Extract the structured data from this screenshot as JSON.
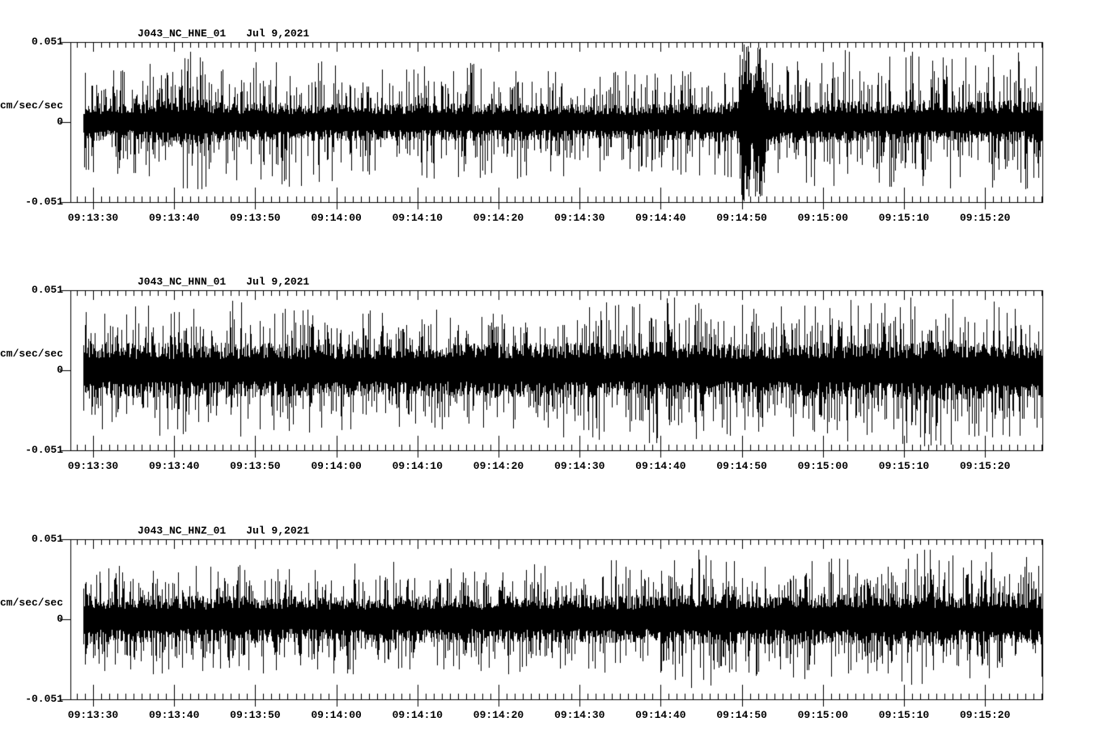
{
  "window": {
    "background_color": "#ffffff",
    "trace_color": "#000000"
  },
  "chart_data": [
    {
      "type": "line",
      "kind": "seismogram-waveform",
      "station": "J043_NC_HNE_01",
      "date": "Jul 9,2021",
      "ylabel": "cm/sec/sec",
      "ytick_labels": [
        "0.051",
        "0",
        "-0.051"
      ],
      "ylim": [
        -0.051,
        0.051
      ],
      "xtick_labels": [
        "09:13:30",
        "09:13:40",
        "09:13:50",
        "09:14:00",
        "09:14:10",
        "09:14:20",
        "09:14:30",
        "09:14:40",
        "09:14:50",
        "09:15:00",
        "09:15:10",
        "09:15:20"
      ],
      "xtick_interval_s": 10,
      "minor_tick_s": 1,
      "trace_start_offset_s": -1.2,
      "trace_end_offset_s": 117.0,
      "seed": 7,
      "envelope": [
        [
          -1.2,
          0.011,
          0.032
        ],
        [
          5,
          0.011,
          0.034
        ],
        [
          8,
          0.014,
          0.042
        ],
        [
          12,
          0.015,
          0.048
        ],
        [
          16,
          0.012,
          0.036
        ],
        [
          25,
          0.011,
          0.042
        ],
        [
          35,
          0.011,
          0.034
        ],
        [
          45,
          0.011,
          0.038
        ],
        [
          55,
          0.011,
          0.036
        ],
        [
          65,
          0.01,
          0.034
        ],
        [
          75,
          0.011,
          0.034
        ],
        [
          79.6,
          0.012,
          0.036
        ],
        [
          79.9,
          0.046,
          0.051
        ],
        [
          81.0,
          0.046,
          0.051
        ],
        [
          81.2,
          0.02,
          0.034
        ],
        [
          81.5,
          0.046,
          0.051
        ],
        [
          82.4,
          0.044,
          0.051
        ],
        [
          83.0,
          0.018,
          0.042
        ],
        [
          84.5,
          0.013,
          0.036
        ],
        [
          88,
          0.012,
          0.04
        ],
        [
          92,
          0.013,
          0.046
        ],
        [
          95,
          0.012,
          0.048
        ],
        [
          98,
          0.012,
          0.042
        ],
        [
          102,
          0.013,
          0.05
        ],
        [
          105,
          0.012,
          0.044
        ],
        [
          109,
          0.012,
          0.04
        ],
        [
          113,
          0.013,
          0.048
        ],
        [
          117,
          0.012,
          0.04
        ]
      ],
      "events": [
        {
          "time_label": "09:14:50",
          "offset_s": 79.9,
          "duration_s": 2.7,
          "peak_abs": 0.051,
          "clipped": true
        }
      ]
    },
    {
      "type": "line",
      "kind": "seismogram-waveform",
      "station": "J043_NC_HNN_01",
      "date": "Jul 9,2021",
      "ylabel": "cm/sec/sec",
      "ytick_labels": [
        "0.051",
        "0",
        "-0.051"
      ],
      "ylim": [
        -0.051,
        0.051
      ],
      "xtick_labels": [
        "09:13:30",
        "09:13:40",
        "09:13:50",
        "09:14:00",
        "09:14:10",
        "09:14:20",
        "09:14:30",
        "09:14:40",
        "09:14:50",
        "09:15:00",
        "09:15:10",
        "09:15:20"
      ],
      "xtick_interval_s": 10,
      "minor_tick_s": 1,
      "trace_start_offset_s": -1.2,
      "trace_end_offset_s": 117.0,
      "seed": 13,
      "envelope": [
        [
          -1.2,
          0.017,
          0.038
        ],
        [
          3,
          0.016,
          0.04
        ],
        [
          8,
          0.016,
          0.042
        ],
        [
          14,
          0.016,
          0.047
        ],
        [
          20,
          0.016,
          0.042
        ],
        [
          28,
          0.016,
          0.04
        ],
        [
          36,
          0.015,
          0.038
        ],
        [
          44,
          0.016,
          0.04
        ],
        [
          52,
          0.016,
          0.042
        ],
        [
          60,
          0.016,
          0.044
        ],
        [
          67,
          0.016,
          0.047
        ],
        [
          72,
          0.017,
          0.048
        ],
        [
          78,
          0.016,
          0.042
        ],
        [
          85,
          0.016,
          0.042
        ],
        [
          92,
          0.017,
          0.046
        ],
        [
          97,
          0.017,
          0.044
        ],
        [
          101,
          0.017,
          0.048
        ],
        [
          105,
          0.018,
          0.05
        ],
        [
          109,
          0.017,
          0.047
        ],
        [
          113,
          0.017,
          0.044
        ],
        [
          117,
          0.016,
          0.042
        ]
      ],
      "events": []
    },
    {
      "type": "line",
      "kind": "seismogram-waveform",
      "station": "J043_NC_HNZ_01",
      "date": "Jul 9,2021",
      "ylabel": "cm/sec/sec",
      "ytick_labels": [
        "0.051",
        "0",
        "-0.051"
      ],
      "ylim": [
        -0.051,
        0.051
      ],
      "xtick_labels": [
        "09:13:30",
        "09:13:40",
        "09:13:50",
        "09:14:00",
        "09:14:10",
        "09:14:20",
        "09:14:30",
        "09:14:40",
        "09:14:50",
        "09:15:00",
        "09:15:10",
        "09:15:20"
      ],
      "xtick_interval_s": 10,
      "minor_tick_s": 1,
      "trace_start_offset_s": -1.2,
      "trace_end_offset_s": 117.0,
      "seed": 21,
      "envelope": [
        [
          -1.2,
          0.015,
          0.034
        ],
        [
          6,
          0.014,
          0.036
        ],
        [
          12,
          0.014,
          0.034
        ],
        [
          20,
          0.014,
          0.036
        ],
        [
          28,
          0.013,
          0.034
        ],
        [
          36,
          0.014,
          0.038
        ],
        [
          44,
          0.014,
          0.034
        ],
        [
          52,
          0.014,
          0.036
        ],
        [
          58,
          0.014,
          0.034
        ],
        [
          64,
          0.014,
          0.038
        ],
        [
          70,
          0.014,
          0.036
        ],
        [
          75,
          0.015,
          0.047
        ],
        [
          80,
          0.015,
          0.036
        ],
        [
          86,
          0.015,
          0.038
        ],
        [
          92,
          0.015,
          0.04
        ],
        [
          97,
          0.015,
          0.038
        ],
        [
          102,
          0.016,
          0.046
        ],
        [
          107,
          0.015,
          0.04
        ],
        [
          112,
          0.016,
          0.044
        ],
        [
          117,
          0.015,
          0.038
        ]
      ],
      "events": []
    }
  ]
}
